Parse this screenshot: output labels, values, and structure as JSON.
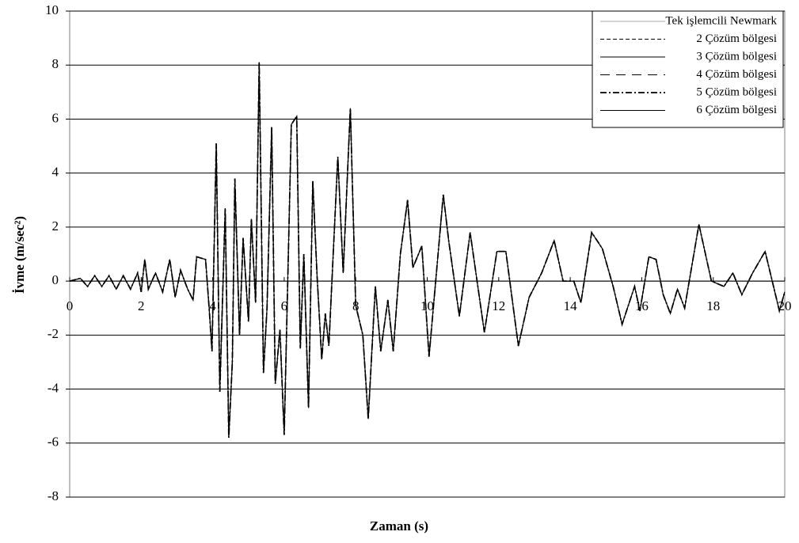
{
  "chart_data": {
    "type": "line",
    "ylabel": "İvme (m/sec²)",
    "xlabel": "Zaman (s)",
    "xlim": [
      0,
      20
    ],
    "xticks": [
      0,
      2,
      4,
      6,
      8,
      10,
      12,
      14,
      16,
      18,
      20
    ],
    "ylim": [
      -8,
      10
    ],
    "yticks": [
      -8,
      -6,
      -4,
      -2,
      0,
      2,
      4,
      6,
      8,
      10
    ],
    "grid": true,
    "legend": "upper right",
    "x": [
      0,
      0.3,
      0.5,
      0.7,
      0.9,
      1.1,
      1.3,
      1.5,
      1.7,
      1.9,
      2.0,
      2.1,
      2.2,
      2.4,
      2.6,
      2.8,
      2.95,
      3.1,
      3.3,
      3.45,
      3.55,
      3.8,
      3.9,
      3.98,
      4.1,
      4.2,
      4.35,
      4.45,
      4.55,
      4.62,
      4.75,
      4.85,
      5.0,
      5.08,
      5.2,
      5.3,
      5.42,
      5.52,
      5.65,
      5.75,
      5.88,
      6.0,
      6.2,
      6.35,
      6.45,
      6.55,
      6.68,
      6.8,
      6.92,
      7.05,
      7.15,
      7.25,
      7.5,
      7.65,
      7.85,
      8.0,
      8.2,
      8.35,
      8.55,
      8.7,
      8.9,
      9.05,
      9.25,
      9.45,
      9.6,
      9.85,
      10.05,
      10.45,
      10.6,
      10.9,
      11.2,
      11.6,
      11.95,
      12.2,
      12.55,
      12.85,
      13.2,
      13.55,
      13.8,
      14.1,
      14.3,
      14.6,
      14.9,
      15.2,
      15.45,
      15.8,
      15.95,
      16.2,
      16.4,
      16.6,
      16.8,
      17.0,
      17.2,
      17.6,
      17.95,
      18.3,
      18.55,
      18.8,
      19.1,
      19.45,
      19.85,
      20.0
    ],
    "series": [
      {
        "name": "Tek işlemcili Newmark",
        "color": "#aaaaaa",
        "style": "thin",
        "values": [
          0,
          0.1,
          -0.2,
          0.2,
          -0.2,
          0.2,
          -0.3,
          0.2,
          -0.3,
          0.3,
          -0.4,
          0.8,
          -0.3,
          0.3,
          -0.4,
          0.8,
          -0.6,
          0.4,
          -0.3,
          -0.7,
          0.9,
          0.8,
          -1.0,
          -2.6,
          5.1,
          -4.1,
          2.7,
          -5.8,
          -3.0,
          3.8,
          -2.0,
          1.6,
          -1.5,
          2.3,
          -0.8,
          8.1,
          -3.4,
          -1.0,
          5.7,
          -3.8,
          -1.8,
          -5.7,
          5.8,
          6.1,
          -2.5,
          1.0,
          -4.7,
          3.7,
          0.2,
          -2.9,
          -1.2,
          -2.4,
          4.6,
          0.3,
          6.4,
          -0.9,
          -2.0,
          -5.1,
          -0.2,
          -2.6,
          -0.7,
          -2.6,
          1.0,
          3.0,
          0.5,
          1.3,
          -2.8,
          3.2,
          1.5,
          -1.3,
          1.8,
          -1.9,
          1.1,
          1.1,
          -2.4,
          -0.6,
          0.3,
          1.5,
          0.0,
          0.0,
          -0.8,
          1.8,
          1.2,
          -0.2,
          -1.6,
          -0.2,
          -1.1,
          0.9,
          0.8,
          -0.5,
          -1.2,
          -0.3,
          -1.0,
          2.1,
          0.0,
          -0.2,
          0.3,
          -0.5,
          0.3,
          1.1,
          -1.1,
          -0.4
        ]
      },
      {
        "name": "2 Çözüm bölgesi",
        "color": "#000000",
        "style": "dashed",
        "values": [
          0,
          0.1,
          -0.2,
          0.2,
          -0.2,
          0.2,
          -0.3,
          0.2,
          -0.3,
          0.3,
          -0.4,
          0.8,
          -0.3,
          0.3,
          -0.4,
          0.8,
          -0.6,
          0.4,
          -0.3,
          -0.7,
          0.9,
          0.8,
          -1.0,
          -2.6,
          5.1,
          -4.1,
          2.7,
          -5.8,
          -3.0,
          3.8,
          -2.0,
          1.6,
          -1.5,
          2.3,
          -0.8,
          8.1,
          -3.4,
          -1.0,
          5.7,
          -3.8,
          -1.8,
          -5.7,
          5.8,
          6.1,
          -2.5,
          1.0,
          -4.7,
          3.7,
          0.2,
          -2.9,
          -1.2,
          -2.4,
          4.6,
          0.3,
          6.4,
          -0.9,
          -2.0,
          -5.1,
          -0.2,
          -2.6,
          -0.7,
          -2.6,
          1.0,
          3.0,
          0.5,
          1.3,
          -2.8,
          3.2,
          1.5,
          -1.3,
          1.8,
          -1.9,
          1.1,
          1.1,
          -2.4,
          -0.6,
          0.3,
          1.5,
          0.0,
          0.0,
          -0.8,
          1.8,
          1.2,
          -0.2,
          -1.6,
          -0.2,
          -1.1,
          0.9,
          0.8,
          -0.5,
          -1.2,
          -0.3,
          -1.0,
          2.1,
          0.0,
          -0.2,
          0.3,
          -0.5,
          0.3,
          1.1,
          -1.1,
          -0.4
        ]
      },
      {
        "name": "3 Çözüm bölgesi",
        "color": "#000000",
        "style": "solid",
        "values": [
          0,
          0.1,
          -0.2,
          0.2,
          -0.2,
          0.2,
          -0.3,
          0.2,
          -0.3,
          0.3,
          -0.4,
          0.8,
          -0.3,
          0.3,
          -0.4,
          0.8,
          -0.6,
          0.4,
          -0.3,
          -0.7,
          0.9,
          0.8,
          -1.0,
          -2.6,
          5.1,
          -4.1,
          2.7,
          -5.8,
          -3.0,
          3.8,
          -2.0,
          1.6,
          -1.5,
          2.3,
          -0.8,
          8.1,
          -3.4,
          -1.0,
          5.7,
          -3.8,
          -1.8,
          -5.7,
          5.8,
          6.1,
          -2.5,
          1.0,
          -4.7,
          3.7,
          0.2,
          -2.9,
          -1.2,
          -2.4,
          4.6,
          0.3,
          6.4,
          -0.9,
          -2.0,
          -5.1,
          -0.2,
          -2.6,
          -0.7,
          -2.6,
          1.0,
          3.0,
          0.5,
          1.3,
          -2.8,
          3.2,
          1.5,
          -1.3,
          1.8,
          -1.9,
          1.1,
          1.1,
          -2.4,
          -0.6,
          0.3,
          1.5,
          0.0,
          0.0,
          -0.8,
          1.8,
          1.2,
          -0.2,
          -1.6,
          -0.2,
          -1.1,
          0.9,
          0.8,
          -0.5,
          -1.2,
          -0.3,
          -1.0,
          2.1,
          0.0,
          -0.2,
          0.3,
          -0.5,
          0.3,
          1.1,
          -1.1,
          -0.4
        ]
      },
      {
        "name": "4 Çözüm bölgesi",
        "color": "#000000",
        "style": "longdash",
        "values": [
          0,
          0.1,
          -0.2,
          0.2,
          -0.2,
          0.2,
          -0.3,
          0.2,
          -0.3,
          0.3,
          -0.4,
          0.8,
          -0.3,
          0.3,
          -0.4,
          0.8,
          -0.6,
          0.4,
          -0.3,
          -0.7,
          0.9,
          0.8,
          -1.0,
          -2.6,
          5.1,
          -4.1,
          2.7,
          -5.8,
          -3.0,
          3.8,
          -2.0,
          1.6,
          -1.5,
          2.3,
          -0.8,
          8.1,
          -3.4,
          -1.0,
          5.7,
          -3.8,
          -1.8,
          -5.7,
          5.8,
          6.1,
          -2.5,
          1.0,
          -4.7,
          3.7,
          0.2,
          -2.9,
          -1.2,
          -2.4,
          4.6,
          0.3,
          6.4,
          -0.9,
          -2.0,
          -5.1,
          -0.2,
          -2.6,
          -0.7,
          -2.6,
          1.0,
          3.0,
          0.5,
          1.3,
          -2.8,
          3.2,
          1.5,
          -1.3,
          1.8,
          -1.9,
          1.1,
          1.1,
          -2.4,
          -0.6,
          0.3,
          1.5,
          0.0,
          0.0,
          -0.8,
          1.8,
          1.2,
          -0.2,
          -1.6,
          -0.2,
          -1.1,
          0.9,
          0.8,
          -0.5,
          -1.2,
          -0.3,
          -1.0,
          2.1,
          0.0,
          -0.2,
          0.3,
          -0.5,
          0.3,
          1.1,
          -1.1,
          -0.4
        ]
      },
      {
        "name": "5 Çözüm bölgesi",
        "color": "#000000",
        "style": "dashdot",
        "values": [
          0,
          0.1,
          -0.2,
          0.2,
          -0.2,
          0.2,
          -0.3,
          0.2,
          -0.3,
          0.3,
          -0.4,
          0.8,
          -0.3,
          0.3,
          -0.4,
          0.8,
          -0.6,
          0.4,
          -0.3,
          -0.7,
          0.9,
          0.8,
          -1.0,
          -2.6,
          5.1,
          -4.1,
          2.7,
          -5.8,
          -3.0,
          3.8,
          -2.0,
          1.6,
          -1.5,
          2.3,
          -0.8,
          8.1,
          -3.4,
          -1.0,
          5.7,
          -3.8,
          -1.8,
          -5.7,
          5.8,
          6.1,
          -2.5,
          1.0,
          -4.7,
          3.7,
          0.2,
          -2.9,
          -1.2,
          -2.4,
          4.6,
          0.3,
          6.4,
          -0.9,
          -2.0,
          -5.1,
          -0.2,
          -2.6,
          -0.7,
          -2.6,
          1.0,
          3.0,
          0.5,
          1.3,
          -2.8,
          3.2,
          1.5,
          -1.3,
          1.8,
          -1.9,
          1.1,
          1.1,
          -2.4,
          -0.6,
          0.3,
          1.5,
          0.0,
          0.0,
          -0.8,
          1.8,
          1.2,
          -0.2,
          -1.6,
          -0.2,
          -1.1,
          0.9,
          0.8,
          -0.5,
          -1.2,
          -0.3,
          -1.0,
          2.1,
          0.0,
          -0.2,
          0.3,
          -0.5,
          0.3,
          1.1,
          -1.1,
          -0.4
        ]
      },
      {
        "name": "6 Çözüm bölgesi",
        "color": "#000000",
        "style": "solid",
        "values": [
          0,
          0.1,
          -0.2,
          0.2,
          -0.2,
          0.2,
          -0.3,
          0.2,
          -0.3,
          0.3,
          -0.4,
          0.8,
          -0.3,
          0.3,
          -0.4,
          0.8,
          -0.6,
          0.4,
          -0.3,
          -0.7,
          0.9,
          0.8,
          -1.0,
          -2.6,
          5.1,
          -4.1,
          2.7,
          -5.8,
          -3.0,
          3.8,
          -2.0,
          1.6,
          -1.5,
          2.3,
          -0.8,
          8.1,
          -3.4,
          -1.0,
          5.7,
          -3.8,
          -1.8,
          -5.7,
          5.8,
          6.1,
          -2.5,
          1.0,
          -4.7,
          3.7,
          0.2,
          -2.9,
          -1.2,
          -2.4,
          4.6,
          0.3,
          6.4,
          -0.9,
          -2.0,
          -5.1,
          -0.2,
          -2.6,
          -0.7,
          -2.6,
          1.0,
          3.0,
          0.5,
          1.3,
          -2.8,
          3.2,
          1.5,
          -1.3,
          1.8,
          -1.9,
          1.1,
          1.1,
          -2.4,
          -0.6,
          0.3,
          1.5,
          0.0,
          0.0,
          -0.8,
          1.8,
          1.2,
          -0.2,
          -1.6,
          -0.2,
          -1.1,
          0.9,
          0.8,
          -0.5,
          -1.2,
          -0.3,
          -1.0,
          2.1,
          0.0,
          -0.2,
          0.3,
          -0.5,
          0.3,
          1.1,
          -1.1,
          -0.4
        ]
      }
    ]
  }
}
